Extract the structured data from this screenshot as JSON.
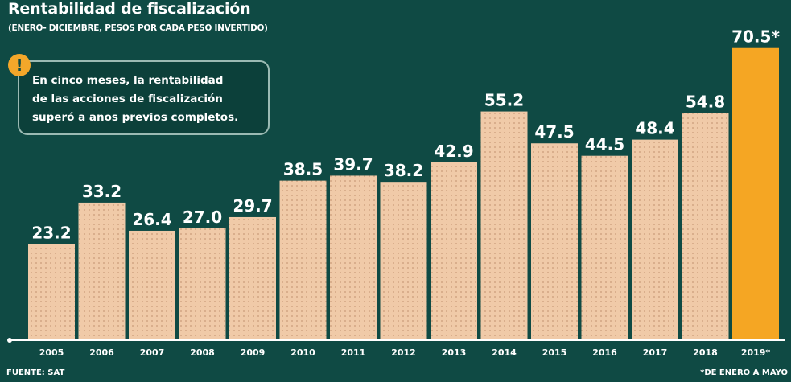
{
  "title": "Rentabilidad de fiscalización",
  "subtitle": "(ENERO- DICIEMBRE, PESOS POR CADA PESO INVERTIDO)",
  "callout": {
    "icon": "exclamation-icon",
    "icon_glyph": "!",
    "lines": [
      "En cinco meses, la rentabilidad",
      "de las acciones de fiscalización",
      "superó a años previos completos."
    ]
  },
  "source": "FUENTE: SAT",
  "footnote": "*DE ENERO A MAYO",
  "colors": {
    "background": "#0f4a44",
    "bar": "#f0caa8",
    "bar_highlight": "#f5a623",
    "label": "#ffffff"
  },
  "chart_data": {
    "type": "bar",
    "categories": [
      "2005",
      "2006",
      "2007",
      "2008",
      "2009",
      "2010",
      "2011",
      "2012",
      "2013",
      "2014",
      "2015",
      "2016",
      "2017",
      "2018",
      "2019*"
    ],
    "values": [
      23.2,
      33.2,
      26.4,
      27.0,
      29.7,
      38.5,
      39.7,
      38.2,
      42.9,
      55.2,
      47.5,
      44.5,
      48.4,
      54.8,
      70.5
    ],
    "value_labels": [
      "23.2",
      "33.2",
      "26.4",
      "27.0",
      "29.7",
      "38.5",
      "39.7",
      "38.2",
      "42.9",
      "55.2",
      "47.5",
      "44.5",
      "48.4",
      "54.8",
      "70.5*"
    ],
    "highlight_index": 14,
    "ylim": [
      0,
      72
    ],
    "grid": false,
    "legend": "none",
    "xlabel": "",
    "ylabel": ""
  }
}
